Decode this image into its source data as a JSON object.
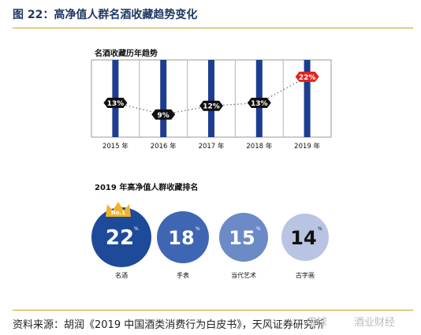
{
  "figure_title": "图 22：高净值人群名酒收藏趋势变化",
  "source_text": "资料来源：胡润《2019 中国酒类消费行为白皮书》，天风证券研究所",
  "watermark": {
    "part1": "雪球",
    "part2": "酒业财经"
  },
  "colors": {
    "bar": "#1e3d8f",
    "pill": "#111111",
    "highlight": "#e2231a",
    "rule": "#c9a227"
  },
  "chart_data": [
    {
      "type": "line",
      "title": "名酒收藏历年趋势",
      "categories": [
        "2015 年",
        "2016 年",
        "2017 年",
        "2018 年",
        "2019 年"
      ],
      "values": [
        13,
        9,
        12,
        13,
        22
      ],
      "labels": [
        "13%",
        "9%",
        "12%",
        "13%",
        "22%"
      ],
      "ylim": [
        0,
        30
      ],
      "highlight_last": true
    },
    {
      "type": "bubble",
      "title": "2019 年高净值人群收藏排名",
      "categories": [
        "名酒",
        "手表",
        "当代艺术",
        "古字画"
      ],
      "values": [
        22,
        18,
        15,
        14
      ],
      "unit": "%",
      "rank_badge": "No.1"
    }
  ]
}
